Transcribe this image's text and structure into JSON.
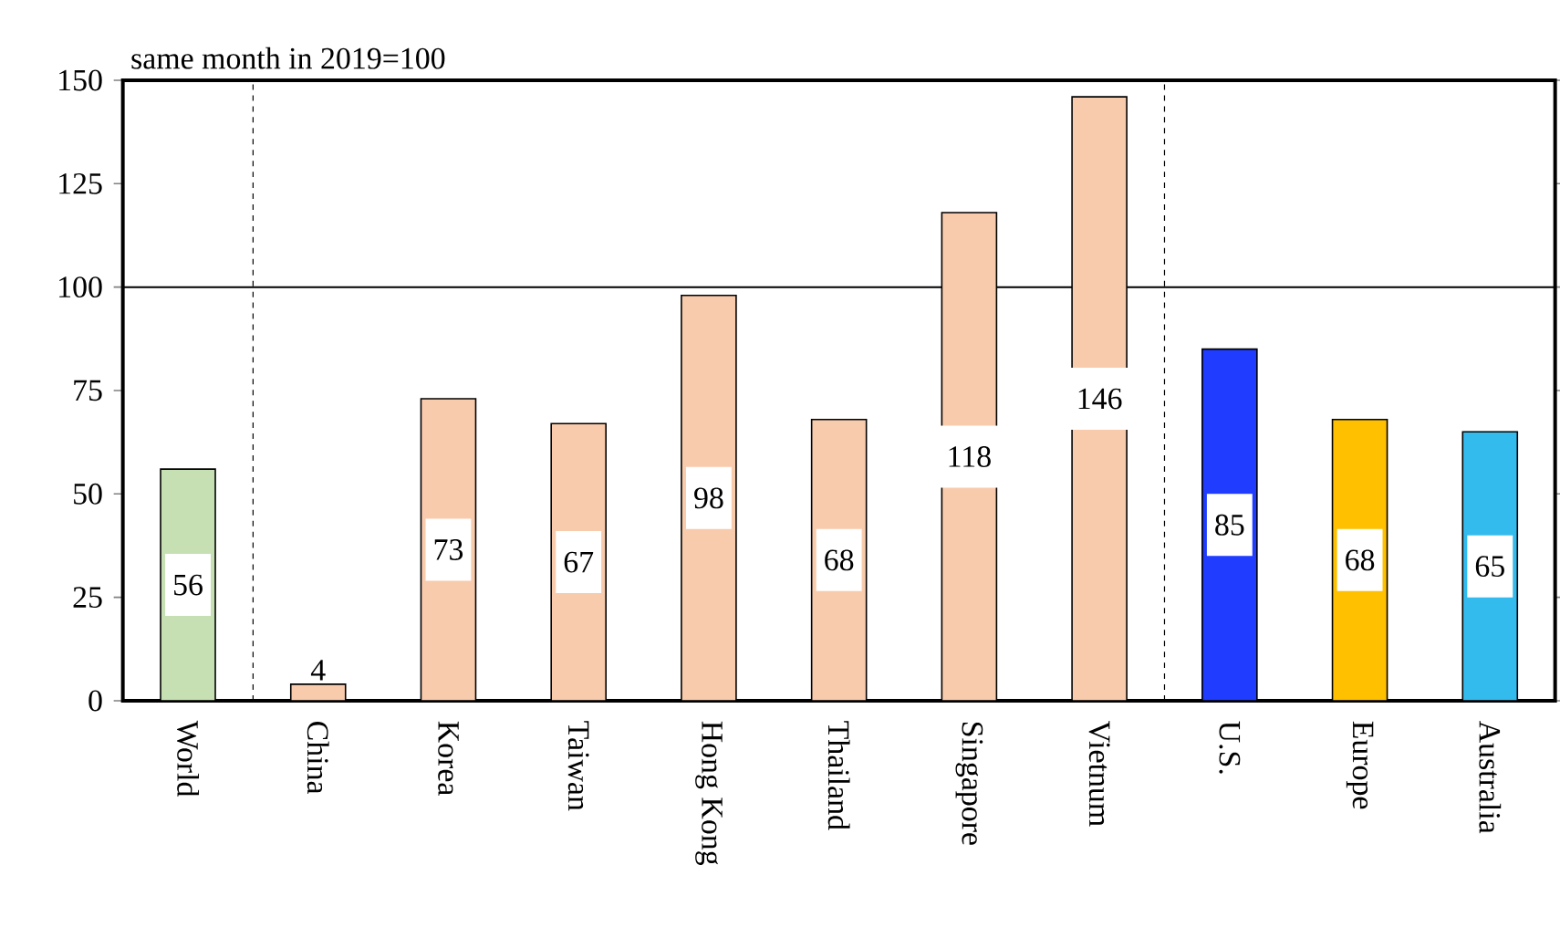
{
  "chart_data": {
    "type": "bar",
    "ylabel": "same month in 2019=100",
    "categories": [
      "World",
      "China",
      "Korea",
      "Taiwan",
      "Hong Kong",
      "Thailand",
      "Singapore",
      "Vietnum",
      "U.S.",
      "Europe",
      "Australia"
    ],
    "values": [
      56,
      4,
      73,
      67,
      98,
      68,
      118,
      146,
      85,
      68,
      65
    ],
    "colors": [
      "#c6e0b4",
      "#f8cbad",
      "#f8cbad",
      "#f8cbad",
      "#f8cbad",
      "#f8cbad",
      "#f8cbad",
      "#f8cbad",
      "#1f3cff",
      "#ffc000",
      "#33bbee"
    ],
    "ylim": [
      0,
      150
    ],
    "yticks": [
      0,
      25,
      50,
      75,
      100,
      125,
      150
    ],
    "grid": false,
    "data_labels": true,
    "ref_lines": [
      {
        "axis": "y",
        "value": 100,
        "line_style": "solid"
      }
    ]
  }
}
